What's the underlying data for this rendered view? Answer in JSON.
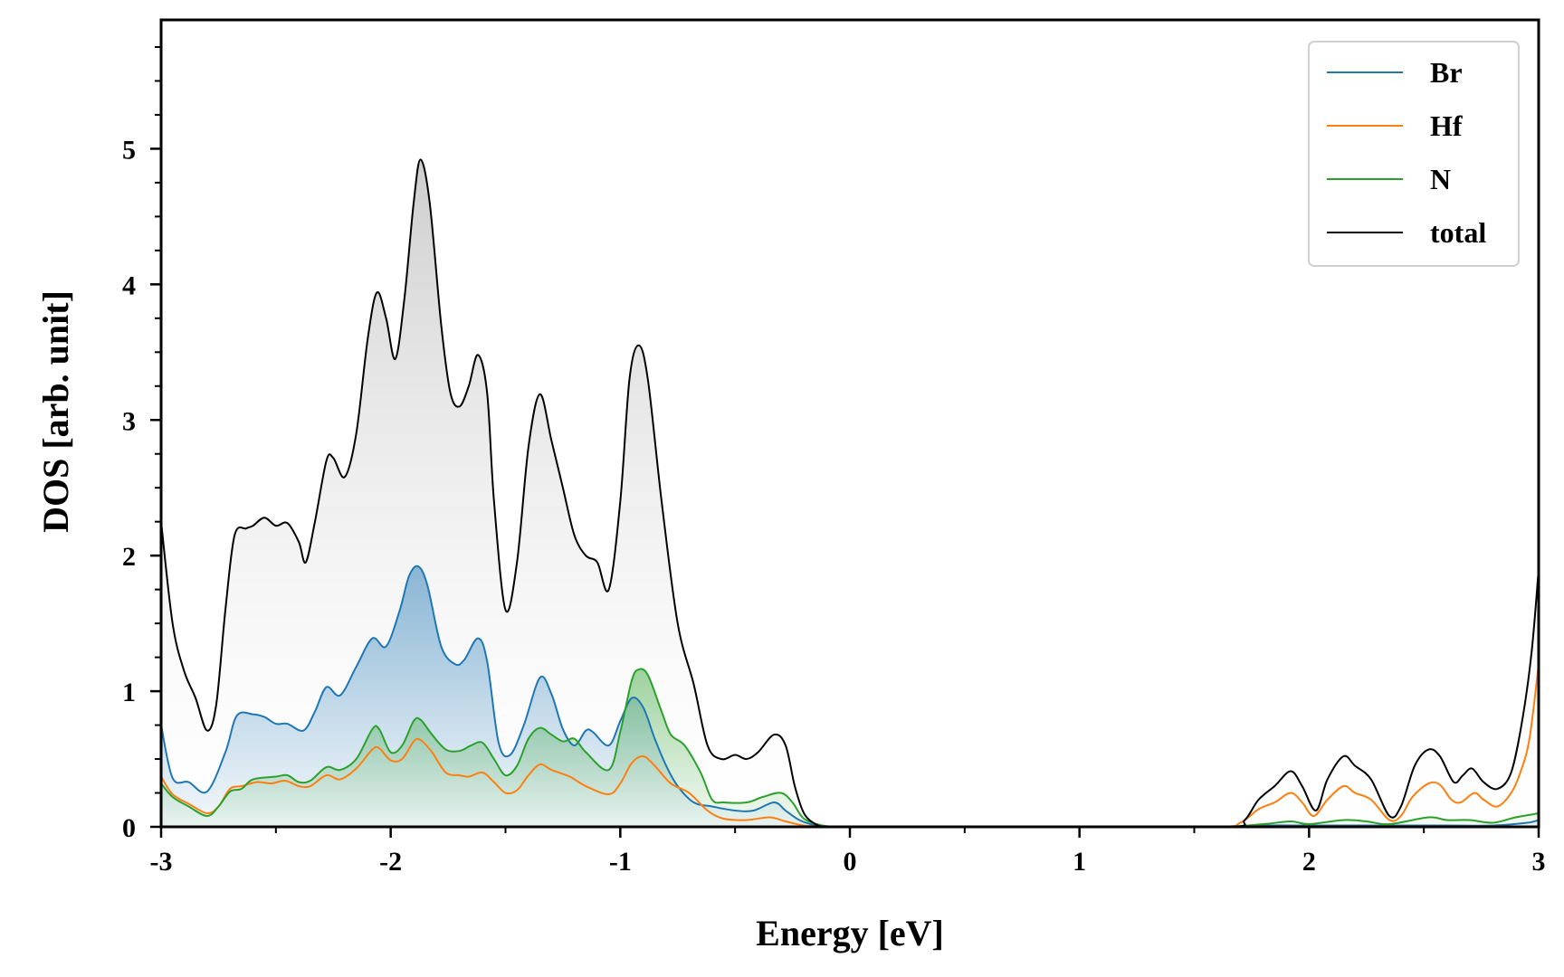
{
  "chart_data": {
    "type": "line",
    "title": "",
    "xlabel": "Energy [eV]",
    "ylabel": "DOS [arb. unit]",
    "xlim": [
      -3,
      3
    ],
    "ylim": [
      0,
      5.95
    ],
    "xticks": [
      -3,
      -2,
      -1,
      0,
      1,
      2,
      3
    ],
    "xtick_labels": [
      "-3",
      "-2",
      "-1",
      "0",
      "1",
      "2",
      "3"
    ],
    "yticks": [
      0,
      1,
      2,
      3,
      4,
      5
    ],
    "ytick_labels": [
      "0",
      "1",
      "2",
      "3",
      "4",
      "5"
    ],
    "grid": false,
    "legend_position": "top-right",
    "fill_under_curves": true,
    "series": [
      {
        "name": "Br",
        "color": "#1f77b4",
        "filled": true,
        "points": [
          [
            -3.0,
            0.75
          ],
          [
            -2.95,
            0.36
          ],
          [
            -2.88,
            0.33
          ],
          [
            -2.8,
            0.26
          ],
          [
            -2.72,
            0.55
          ],
          [
            -2.67,
            0.82
          ],
          [
            -2.6,
            0.83
          ],
          [
            -2.55,
            0.81
          ],
          [
            -2.5,
            0.76
          ],
          [
            -2.45,
            0.76
          ],
          [
            -2.38,
            0.71
          ],
          [
            -2.33,
            0.85
          ],
          [
            -2.28,
            1.03
          ],
          [
            -2.22,
            0.97
          ],
          [
            -2.15,
            1.18
          ],
          [
            -2.08,
            1.39
          ],
          [
            -2.02,
            1.33
          ],
          [
            -1.96,
            1.6
          ],
          [
            -1.92,
            1.85
          ],
          [
            -1.88,
            1.92
          ],
          [
            -1.84,
            1.78
          ],
          [
            -1.78,
            1.33
          ],
          [
            -1.72,
            1.2
          ],
          [
            -1.68,
            1.23
          ],
          [
            -1.62,
            1.39
          ],
          [
            -1.58,
            1.22
          ],
          [
            -1.53,
            0.62
          ],
          [
            -1.48,
            0.53
          ],
          [
            -1.42,
            0.75
          ],
          [
            -1.35,
            1.1
          ],
          [
            -1.3,
            0.98
          ],
          [
            -1.25,
            0.72
          ],
          [
            -1.2,
            0.6
          ],
          [
            -1.15,
            0.71
          ],
          [
            -1.12,
            0.7
          ],
          [
            -1.05,
            0.6
          ],
          [
            -1.0,
            0.78
          ],
          [
            -0.95,
            0.95
          ],
          [
            -0.9,
            0.88
          ],
          [
            -0.85,
            0.65
          ],
          [
            -0.8,
            0.45
          ],
          [
            -0.75,
            0.3
          ],
          [
            -0.68,
            0.18
          ],
          [
            -0.6,
            0.15
          ],
          [
            -0.5,
            0.12
          ],
          [
            -0.42,
            0.12
          ],
          [
            -0.33,
            0.18
          ],
          [
            -0.28,
            0.12
          ],
          [
            -0.22,
            0.05
          ],
          [
            -0.15,
            0.01
          ],
          [
            -0.1,
            0.0
          ],
          [
            0.0,
            0.0
          ],
          [
            1.0,
            0.0
          ],
          [
            1.6,
            0.0
          ],
          [
            1.8,
            0.01
          ],
          [
            2.0,
            0.01
          ],
          [
            2.2,
            0.01
          ],
          [
            2.4,
            0.01
          ],
          [
            2.6,
            0.01
          ],
          [
            2.8,
            0.01
          ],
          [
            2.95,
            0.03
          ],
          [
            3.0,
            0.05
          ]
        ]
      },
      {
        "name": "Hf",
        "color": "#ff7f0e",
        "filled": false,
        "points": [
          [
            -3.0,
            0.37
          ],
          [
            -2.95,
            0.24
          ],
          [
            -2.88,
            0.17
          ],
          [
            -2.8,
            0.1
          ],
          [
            -2.75,
            0.15
          ],
          [
            -2.7,
            0.28
          ],
          [
            -2.65,
            0.3
          ],
          [
            -2.58,
            0.33
          ],
          [
            -2.52,
            0.32
          ],
          [
            -2.46,
            0.34
          ],
          [
            -2.4,
            0.3
          ],
          [
            -2.35,
            0.3
          ],
          [
            -2.28,
            0.38
          ],
          [
            -2.22,
            0.35
          ],
          [
            -2.15,
            0.43
          ],
          [
            -2.08,
            0.57
          ],
          [
            -2.05,
            0.58
          ],
          [
            -2.0,
            0.49
          ],
          [
            -1.95,
            0.5
          ],
          [
            -1.9,
            0.63
          ],
          [
            -1.87,
            0.64
          ],
          [
            -1.82,
            0.55
          ],
          [
            -1.76,
            0.4
          ],
          [
            -1.7,
            0.38
          ],
          [
            -1.66,
            0.37
          ],
          [
            -1.6,
            0.4
          ],
          [
            -1.55,
            0.33
          ],
          [
            -1.5,
            0.25
          ],
          [
            -1.45,
            0.27
          ],
          [
            -1.4,
            0.38
          ],
          [
            -1.35,
            0.46
          ],
          [
            -1.3,
            0.42
          ],
          [
            -1.22,
            0.37
          ],
          [
            -1.15,
            0.3
          ],
          [
            -1.05,
            0.24
          ],
          [
            -1.0,
            0.32
          ],
          [
            -0.95,
            0.47
          ],
          [
            -0.9,
            0.52
          ],
          [
            -0.85,
            0.45
          ],
          [
            -0.78,
            0.32
          ],
          [
            -0.7,
            0.25
          ],
          [
            -0.62,
            0.12
          ],
          [
            -0.55,
            0.06
          ],
          [
            -0.45,
            0.05
          ],
          [
            -0.35,
            0.07
          ],
          [
            -0.28,
            0.04
          ],
          [
            -0.2,
            0.01
          ],
          [
            -0.1,
            0.0
          ],
          [
            0.0,
            0.0
          ],
          [
            1.0,
            0.0
          ],
          [
            1.6,
            0.0
          ],
          [
            1.7,
            0.03
          ],
          [
            1.78,
            0.13
          ],
          [
            1.85,
            0.18
          ],
          [
            1.92,
            0.25
          ],
          [
            1.97,
            0.18
          ],
          [
            2.02,
            0.08
          ],
          [
            2.08,
            0.2
          ],
          [
            2.15,
            0.3
          ],
          [
            2.2,
            0.25
          ],
          [
            2.27,
            0.2
          ],
          [
            2.35,
            0.05
          ],
          [
            2.4,
            0.08
          ],
          [
            2.45,
            0.22
          ],
          [
            2.52,
            0.32
          ],
          [
            2.57,
            0.31
          ],
          [
            2.62,
            0.2
          ],
          [
            2.66,
            0.18
          ],
          [
            2.72,
            0.25
          ],
          [
            2.76,
            0.2
          ],
          [
            2.82,
            0.15
          ],
          [
            2.88,
            0.25
          ],
          [
            2.92,
            0.4
          ],
          [
            2.96,
            0.65
          ],
          [
            3.0,
            1.2
          ]
        ]
      },
      {
        "name": "N",
        "color": "#2ca02c",
        "filled": true,
        "points": [
          [
            -3.0,
            0.32
          ],
          [
            -2.95,
            0.22
          ],
          [
            -2.88,
            0.15
          ],
          [
            -2.8,
            0.08
          ],
          [
            -2.75,
            0.15
          ],
          [
            -2.7,
            0.26
          ],
          [
            -2.65,
            0.28
          ],
          [
            -2.6,
            0.35
          ],
          [
            -2.5,
            0.37
          ],
          [
            -2.45,
            0.38
          ],
          [
            -2.4,
            0.33
          ],
          [
            -2.35,
            0.34
          ],
          [
            -2.28,
            0.44
          ],
          [
            -2.22,
            0.42
          ],
          [
            -2.15,
            0.5
          ],
          [
            -2.08,
            0.72
          ],
          [
            -2.05,
            0.72
          ],
          [
            -2.0,
            0.55
          ],
          [
            -1.95,
            0.6
          ],
          [
            -1.9,
            0.78
          ],
          [
            -1.87,
            0.79
          ],
          [
            -1.82,
            0.68
          ],
          [
            -1.76,
            0.57
          ],
          [
            -1.7,
            0.56
          ],
          [
            -1.65,
            0.6
          ],
          [
            -1.6,
            0.62
          ],
          [
            -1.55,
            0.5
          ],
          [
            -1.5,
            0.38
          ],
          [
            -1.45,
            0.45
          ],
          [
            -1.4,
            0.65
          ],
          [
            -1.35,
            0.73
          ],
          [
            -1.3,
            0.68
          ],
          [
            -1.25,
            0.63
          ],
          [
            -1.2,
            0.65
          ],
          [
            -1.15,
            0.55
          ],
          [
            -1.05,
            0.42
          ],
          [
            -1.0,
            0.7
          ],
          [
            -0.95,
            1.08
          ],
          [
            -0.92,
            1.16
          ],
          [
            -0.88,
            1.12
          ],
          [
            -0.82,
            0.85
          ],
          [
            -0.78,
            0.68
          ],
          [
            -0.72,
            0.6
          ],
          [
            -0.65,
            0.4
          ],
          [
            -0.6,
            0.2
          ],
          [
            -0.55,
            0.18
          ],
          [
            -0.45,
            0.18
          ],
          [
            -0.38,
            0.22
          ],
          [
            -0.3,
            0.25
          ],
          [
            -0.25,
            0.18
          ],
          [
            -0.2,
            0.06
          ],
          [
            -0.12,
            0.01
          ],
          [
            -0.05,
            0.0
          ],
          [
            0.0,
            0.0
          ],
          [
            1.0,
            0.0
          ],
          [
            1.6,
            0.0
          ],
          [
            1.8,
            0.02
          ],
          [
            1.92,
            0.04
          ],
          [
            2.0,
            0.02
          ],
          [
            2.15,
            0.05
          ],
          [
            2.25,
            0.04
          ],
          [
            2.35,
            0.02
          ],
          [
            2.52,
            0.07
          ],
          [
            2.6,
            0.05
          ],
          [
            2.7,
            0.05
          ],
          [
            2.8,
            0.03
          ],
          [
            2.9,
            0.07
          ],
          [
            3.0,
            0.1
          ]
        ]
      },
      {
        "name": "total",
        "color": "#000000",
        "filled": true,
        "points": [
          [
            -3.0,
            2.25
          ],
          [
            -2.95,
            1.5
          ],
          [
            -2.9,
            1.15
          ],
          [
            -2.85,
            0.95
          ],
          [
            -2.8,
            0.71
          ],
          [
            -2.76,
            0.9
          ],
          [
            -2.72,
            1.6
          ],
          [
            -2.68,
            2.15
          ],
          [
            -2.63,
            2.2
          ],
          [
            -2.6,
            2.22
          ],
          [
            -2.55,
            2.28
          ],
          [
            -2.5,
            2.22
          ],
          [
            -2.45,
            2.24
          ],
          [
            -2.4,
            2.1
          ],
          [
            -2.37,
            1.95
          ],
          [
            -2.33,
            2.25
          ],
          [
            -2.28,
            2.7
          ],
          [
            -2.25,
            2.72
          ],
          [
            -2.2,
            2.58
          ],
          [
            -2.15,
            2.9
          ],
          [
            -2.1,
            3.6
          ],
          [
            -2.06,
            3.94
          ],
          [
            -2.02,
            3.75
          ],
          [
            -1.98,
            3.45
          ],
          [
            -1.94,
            3.9
          ],
          [
            -1.9,
            4.6
          ],
          [
            -1.87,
            4.92
          ],
          [
            -1.83,
            4.6
          ],
          [
            -1.78,
            3.7
          ],
          [
            -1.74,
            3.2
          ],
          [
            -1.7,
            3.1
          ],
          [
            -1.66,
            3.25
          ],
          [
            -1.62,
            3.48
          ],
          [
            -1.58,
            3.2
          ],
          [
            -1.55,
            2.4
          ],
          [
            -1.5,
            1.6
          ],
          [
            -1.45,
            1.95
          ],
          [
            -1.4,
            2.8
          ],
          [
            -1.35,
            3.19
          ],
          [
            -1.3,
            2.85
          ],
          [
            -1.25,
            2.5
          ],
          [
            -1.2,
            2.15
          ],
          [
            -1.15,
            2.0
          ],
          [
            -1.1,
            1.95
          ],
          [
            -1.05,
            1.75
          ],
          [
            -1.0,
            2.4
          ],
          [
            -0.96,
            3.3
          ],
          [
            -0.92,
            3.55
          ],
          [
            -0.88,
            3.3
          ],
          [
            -0.82,
            2.4
          ],
          [
            -0.75,
            1.5
          ],
          [
            -0.68,
            1.05
          ],
          [
            -0.62,
            0.6
          ],
          [
            -0.56,
            0.5
          ],
          [
            -0.5,
            0.53
          ],
          [
            -0.45,
            0.5
          ],
          [
            -0.4,
            0.55
          ],
          [
            -0.33,
            0.68
          ],
          [
            -0.28,
            0.6
          ],
          [
            -0.24,
            0.3
          ],
          [
            -0.2,
            0.1
          ],
          [
            -0.15,
            0.02
          ],
          [
            -0.1,
            0.0
          ],
          [
            0.0,
            0.0
          ],
          [
            1.0,
            0.0
          ],
          [
            1.65,
            0.0
          ],
          [
            1.72,
            0.05
          ],
          [
            1.78,
            0.2
          ],
          [
            1.85,
            0.3
          ],
          [
            1.92,
            0.41
          ],
          [
            1.97,
            0.3
          ],
          [
            2.03,
            0.12
          ],
          [
            2.08,
            0.35
          ],
          [
            2.15,
            0.52
          ],
          [
            2.2,
            0.45
          ],
          [
            2.27,
            0.35
          ],
          [
            2.35,
            0.08
          ],
          [
            2.4,
            0.15
          ],
          [
            2.46,
            0.45
          ],
          [
            2.52,
            0.57
          ],
          [
            2.57,
            0.52
          ],
          [
            2.63,
            0.33
          ],
          [
            2.67,
            0.38
          ],
          [
            2.71,
            0.43
          ],
          [
            2.76,
            0.33
          ],
          [
            2.82,
            0.28
          ],
          [
            2.88,
            0.4
          ],
          [
            2.93,
            0.8
          ],
          [
            2.97,
            1.3
          ],
          [
            3.0,
            1.9
          ]
        ]
      }
    ]
  }
}
